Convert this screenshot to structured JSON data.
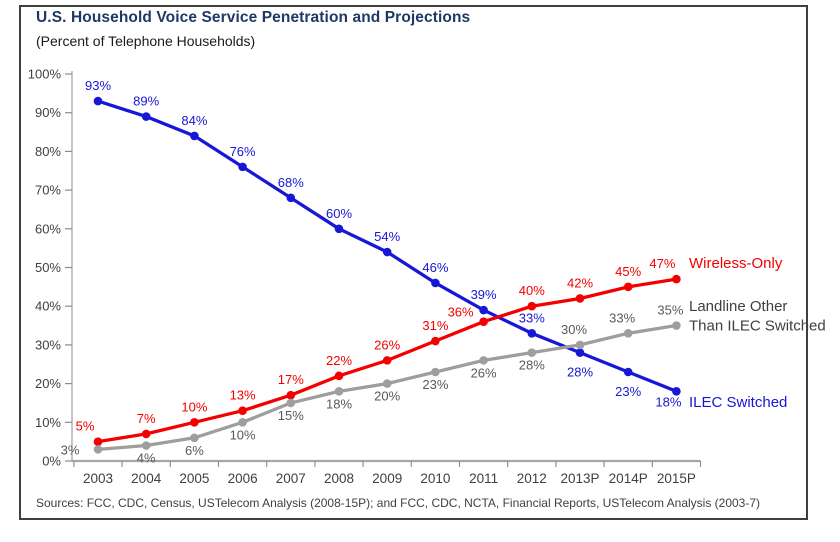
{
  "header": {
    "title": "U.S. Household Voice Service Penetration and Projections",
    "subtitle": "(Percent of Telephone Households)"
  },
  "footer": {
    "sources": "Sources: FCC, CDC, Census, USTelecom Analysis (2008-15P); and FCC, CDC, NCTA, Financial Reports, USTelecom Analysis (2003-7)"
  },
  "colors": {
    "blue": "#1717D6",
    "red": "#F40000",
    "gray": "#9E9E9E",
    "gray_label": "#595959",
    "series_label_gray": "#404040",
    "axis_text": "#404040",
    "axis_line": "#A6A6A6",
    "tick": "#8C8C8C",
    "title": "#1F3864",
    "border": "#3F3F3F"
  },
  "chart_data": {
    "type": "line",
    "title": "U.S. Household Voice Service Penetration and Projections",
    "subtitle": "(Percent of Telephone Households)",
    "categories": [
      "2003",
      "2004",
      "2005",
      "2006",
      "2007",
      "2008",
      "2009",
      "2010",
      "2011",
      "2012",
      "2013P",
      "2014P",
      "2015P"
    ],
    "series": [
      {
        "name": "ILEC Switched",
        "color_key": "blue",
        "label_lines": [
          "ILEC Switched"
        ],
        "values": [
          93,
          89,
          84,
          76,
          68,
          60,
          54,
          46,
          39,
          33,
          28,
          23,
          18
        ]
      },
      {
        "name": "Wireless-Only",
        "color_key": "red",
        "label_lines": [
          "Wireless-Only"
        ],
        "values": [
          5,
          7,
          10,
          13,
          17,
          22,
          26,
          31,
          36,
          40,
          42,
          45,
          47
        ]
      },
      {
        "name": "Landline Other Than ILEC Switched",
        "color_key": "gray",
        "label_lines": [
          "Landline Other",
          "Than ILEC Switched"
        ],
        "values": [
          3,
          4,
          6,
          10,
          15,
          18,
          20,
          23,
          26,
          28,
          30,
          33,
          35
        ]
      }
    ],
    "data_label_format": "percent",
    "ylabel": "",
    "xlabel": "",
    "ylim": [
      0,
      100
    ],
    "y_tick_step": 10,
    "y_tick_labels": [
      "0%",
      "10%",
      "20%",
      "30%",
      "40%",
      "50%",
      "60%",
      "70%",
      "80%",
      "90%",
      "100%"
    ],
    "grid": false,
    "legend_position": "right-of-line-ends"
  }
}
